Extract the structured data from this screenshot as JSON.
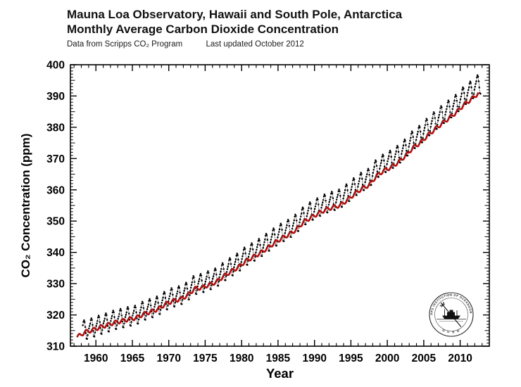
{
  "header": {
    "title_line1": "Mauna Loa Observatory, Hawaii and South Pole, Antarctica",
    "title_line2": "Monthly Average Carbon Dioxide Concentration",
    "subtitle_source": "Data from Scripps CO₂ Program",
    "subtitle_updated": "Last updated October 2012"
  },
  "seal": {
    "ring_text": "SCRIPPS INSTITUTION OF OCEANOGRAPHY",
    "bottom_text": "U C S D"
  },
  "colors": {
    "mauna_loa": "#000000",
    "south_pole": "#aa1111",
    "frame": "#000000",
    "background": "#ffffff"
  },
  "chart_data": {
    "type": "line",
    "title": "Mauna Loa Observatory, Hawaii and South Pole, Antarctica — Monthly Average Carbon Dioxide Concentration",
    "xlabel": "Year",
    "ylabel": "CO₂ Concentration (ppm)",
    "xlim": [
      1956.5,
      2014
    ],
    "ylim": [
      310,
      400
    ],
    "x_major_step": 5,
    "x_minor_step": 1,
    "y_major_step": 10,
    "y_minor_step": 1,
    "x_tick_labels": [
      1960,
      1965,
      1970,
      1975,
      1980,
      1985,
      1990,
      1995,
      2000,
      2005,
      2010
    ],
    "y_tick_labels": [
      310,
      320,
      330,
      340,
      350,
      360,
      370,
      380,
      390,
      400
    ],
    "grid": false,
    "legend": "none",
    "series": [
      {
        "name": "Mauna Loa Observatory, Hawaii (monthly average)",
        "color": "#000000",
        "style": "black dots connected by thin dashed line, strong seasonal cycle",
        "start_year": 1958,
        "first_month": 3,
        "last_year": 2012,
        "last_month": 10,
        "annual_means": [
          315.3,
          316.0,
          316.9,
          317.6,
          318.5,
          319.0,
          319.6,
          320.0,
          321.4,
          322.2,
          323.0,
          324.6,
          325.7,
          326.3,
          327.5,
          329.7,
          330.2,
          331.1,
          332.0,
          333.8,
          335.4,
          336.8,
          338.8,
          340.1,
          341.5,
          343.2,
          344.9,
          346.4,
          347.6,
          349.3,
          351.7,
          353.2,
          354.5,
          355.7,
          356.5,
          357.2,
          359.0,
          361.0,
          362.7,
          363.9,
          366.8,
          368.5,
          369.7,
          371.3,
          373.4,
          376.0,
          377.7,
          380.0,
          382.1,
          384.0,
          385.8,
          387.6,
          390.1,
          391.9,
          393.9
        ],
        "seasonal_cycle": [
          0.0,
          0.7,
          1.4,
          2.5,
          3.0,
          2.4,
          0.8,
          -1.2,
          -3.0,
          -3.2,
          -2.0,
          -0.8
        ]
      },
      {
        "name": "South Pole, Antarctica (monthly average)",
        "color": "#aa1111",
        "style": "thick dark-red continuous line, small seasonal cycle",
        "start_year": 1957,
        "first_month": 6,
        "last_year": 2012,
        "last_month": 6,
        "annual_means": [
          313.0,
          314.5,
          315.1,
          316.0,
          316.7,
          317.5,
          318.0,
          318.6,
          319.0,
          320.2,
          321.0,
          321.8,
          323.4,
          324.4,
          325.0,
          326.1,
          328.3,
          328.7,
          329.6,
          330.5,
          332.3,
          333.8,
          335.2,
          337.1,
          338.4,
          339.7,
          341.3,
          343.0,
          344.5,
          345.7,
          347.3,
          349.7,
          351.1,
          352.4,
          353.6,
          354.4,
          355.0,
          356.7,
          358.7,
          360.4,
          361.5,
          364.4,
          366.1,
          367.2,
          368.8,
          370.9,
          373.4,
          375.0,
          377.3,
          379.3,
          381.2,
          383.0,
          384.8,
          387.2,
          388.9,
          390.9
        ],
        "seasonal_cycle": [
          -0.3,
          -0.5,
          -0.6,
          -0.5,
          -0.2,
          0.1,
          0.4,
          0.6,
          0.6,
          0.5,
          0.2,
          -0.1
        ]
      }
    ]
  }
}
